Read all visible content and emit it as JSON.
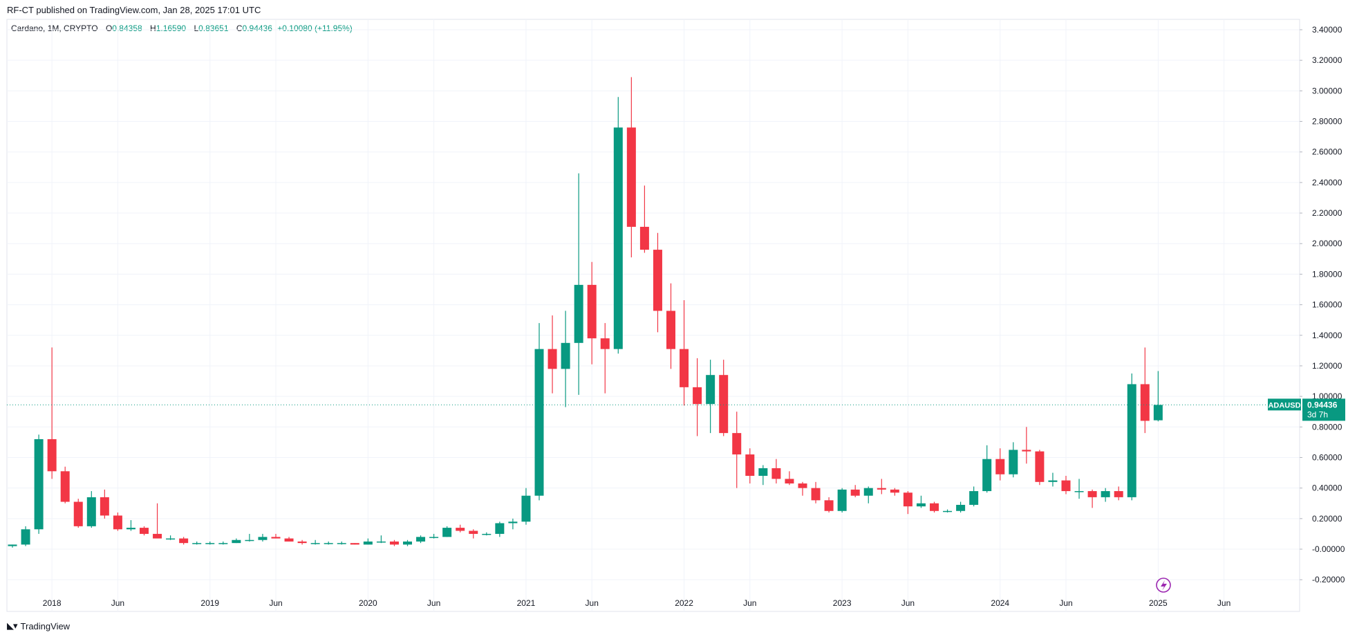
{
  "header": {
    "published": "RF-CT published on TradingView.com, Jan 28, 2025 17:01 UTC"
  },
  "legend": {
    "symbol": "Cardano, 1M, CRYPTO",
    "open_label": "O",
    "open": "0.84358",
    "high_label": "H",
    "high": "1.16590",
    "low_label": "L",
    "low": "0.83651",
    "close_label": "C",
    "close": "0.94436",
    "change": "+0.10080 (+11.95%)"
  },
  "price_tag": {
    "symbol": "ADAUSD",
    "price": "0.94436",
    "countdown": "3d 7h",
    "color": "#089981"
  },
  "footer": {
    "brand": "TradingView"
  },
  "colors": {
    "up": "#089981",
    "down": "#F23645",
    "grid": "#f0f3fa",
    "axis_text": "#131722",
    "last_price_line": "#089981"
  },
  "chart_data": {
    "type": "candlestick",
    "timeframe": "1M",
    "ylim": [
      -0.3,
      3.45
    ],
    "y_ticks": [
      "3.40000",
      "3.20000",
      "3.00000",
      "2.80000",
      "2.60000",
      "2.40000",
      "2.20000",
      "2.00000",
      "1.80000",
      "1.60000",
      "1.40000",
      "1.20000",
      "1.00000",
      "0.80000",
      "0.60000",
      "0.40000",
      "0.20000",
      "-0.00000",
      "-0.20000"
    ],
    "x_ticks": [
      {
        "label": "2018",
        "month_index": 3
      },
      {
        "label": "Jun",
        "month_index": 8
      },
      {
        "label": "2019",
        "month_index": 15
      },
      {
        "label": "Jun",
        "month_index": 20
      },
      {
        "label": "2020",
        "month_index": 27
      },
      {
        "label": "Jun",
        "month_index": 32
      },
      {
        "label": "2021",
        "month_index": 39
      },
      {
        "label": "Jun",
        "month_index": 44
      },
      {
        "label": "2022",
        "month_index": 51
      },
      {
        "label": "Jun",
        "month_index": 56
      },
      {
        "label": "2023",
        "month_index": 63
      },
      {
        "label": "Jun",
        "month_index": 68
      },
      {
        "label": "2024",
        "month_index": 75
      },
      {
        "label": "Jun",
        "month_index": 80
      },
      {
        "label": "2025",
        "month_index": 87
      },
      {
        "label": "Jun",
        "month_index": 92
      }
    ],
    "last_price": 0.94436,
    "candles": [
      {
        "m": "2017-10",
        "o": 0.02,
        "h": 0.03,
        "l": 0.01,
        "c": 0.03
      },
      {
        "m": "2017-11",
        "o": 0.03,
        "h": 0.15,
        "l": 0.02,
        "c": 0.13
      },
      {
        "m": "2017-12",
        "o": 0.13,
        "h": 0.75,
        "l": 0.1,
        "c": 0.72
      },
      {
        "m": "2018-01",
        "o": 0.72,
        "h": 1.32,
        "l": 0.46,
        "c": 0.51
      },
      {
        "m": "2018-02",
        "o": 0.51,
        "h": 0.54,
        "l": 0.3,
        "c": 0.31
      },
      {
        "m": "2018-03",
        "o": 0.31,
        "h": 0.33,
        "l": 0.14,
        "c": 0.15
      },
      {
        "m": "2018-04",
        "o": 0.15,
        "h": 0.38,
        "l": 0.14,
        "c": 0.34
      },
      {
        "m": "2018-05",
        "o": 0.34,
        "h": 0.39,
        "l": 0.2,
        "c": 0.22
      },
      {
        "m": "2018-06",
        "o": 0.22,
        "h": 0.24,
        "l": 0.12,
        "c": 0.13
      },
      {
        "m": "2018-07",
        "o": 0.13,
        "h": 0.19,
        "l": 0.12,
        "c": 0.14
      },
      {
        "m": "2018-08",
        "o": 0.14,
        "h": 0.15,
        "l": 0.09,
        "c": 0.1
      },
      {
        "m": "2018-09",
        "o": 0.1,
        "h": 0.3,
        "l": 0.07,
        "c": 0.07
      },
      {
        "m": "2018-10",
        "o": 0.07,
        "h": 0.09,
        "l": 0.06,
        "c": 0.07
      },
      {
        "m": "2018-11",
        "o": 0.07,
        "h": 0.08,
        "l": 0.03,
        "c": 0.04
      },
      {
        "m": "2018-12",
        "o": 0.04,
        "h": 0.05,
        "l": 0.03,
        "c": 0.04
      },
      {
        "m": "2019-01",
        "o": 0.04,
        "h": 0.05,
        "l": 0.03,
        "c": 0.04
      },
      {
        "m": "2019-02",
        "o": 0.04,
        "h": 0.05,
        "l": 0.03,
        "c": 0.04
      },
      {
        "m": "2019-03",
        "o": 0.04,
        "h": 0.07,
        "l": 0.04,
        "c": 0.06
      },
      {
        "m": "2019-04",
        "o": 0.06,
        "h": 0.1,
        "l": 0.05,
        "c": 0.06
      },
      {
        "m": "2019-05",
        "o": 0.06,
        "h": 0.1,
        "l": 0.05,
        "c": 0.08
      },
      {
        "m": "2019-06",
        "o": 0.08,
        "h": 0.1,
        "l": 0.07,
        "c": 0.07
      },
      {
        "m": "2019-07",
        "o": 0.07,
        "h": 0.08,
        "l": 0.05,
        "c": 0.05
      },
      {
        "m": "2019-08",
        "o": 0.05,
        "h": 0.06,
        "l": 0.03,
        "c": 0.04
      },
      {
        "m": "2019-09",
        "o": 0.04,
        "h": 0.06,
        "l": 0.03,
        "c": 0.04
      },
      {
        "m": "2019-10",
        "o": 0.04,
        "h": 0.05,
        "l": 0.03,
        "c": 0.04
      },
      {
        "m": "2019-11",
        "o": 0.04,
        "h": 0.05,
        "l": 0.03,
        "c": 0.04
      },
      {
        "m": "2019-12",
        "o": 0.04,
        "h": 0.04,
        "l": 0.03,
        "c": 0.03
      },
      {
        "m": "2020-01",
        "o": 0.03,
        "h": 0.07,
        "l": 0.03,
        "c": 0.05
      },
      {
        "m": "2020-02",
        "o": 0.05,
        "h": 0.09,
        "l": 0.04,
        "c": 0.05
      },
      {
        "m": "2020-03",
        "o": 0.05,
        "h": 0.06,
        "l": 0.02,
        "c": 0.03
      },
      {
        "m": "2020-04",
        "o": 0.03,
        "h": 0.06,
        "l": 0.02,
        "c": 0.05
      },
      {
        "m": "2020-05",
        "o": 0.05,
        "h": 0.09,
        "l": 0.04,
        "c": 0.08
      },
      {
        "m": "2020-06",
        "o": 0.08,
        "h": 0.1,
        "l": 0.07,
        "c": 0.08
      },
      {
        "m": "2020-07",
        "o": 0.08,
        "h": 0.15,
        "l": 0.08,
        "c": 0.14
      },
      {
        "m": "2020-08",
        "o": 0.14,
        "h": 0.16,
        "l": 0.11,
        "c": 0.12
      },
      {
        "m": "2020-09",
        "o": 0.12,
        "h": 0.13,
        "l": 0.07,
        "c": 0.1
      },
      {
        "m": "2020-10",
        "o": 0.1,
        "h": 0.11,
        "l": 0.09,
        "c": 0.1
      },
      {
        "m": "2020-11",
        "o": 0.1,
        "h": 0.18,
        "l": 0.08,
        "c": 0.17
      },
      {
        "m": "2020-12",
        "o": 0.17,
        "h": 0.2,
        "l": 0.13,
        "c": 0.18
      },
      {
        "m": "2021-01",
        "o": 0.18,
        "h": 0.4,
        "l": 0.16,
        "c": 0.35
      },
      {
        "m": "2021-02",
        "o": 0.35,
        "h": 1.48,
        "l": 0.32,
        "c": 1.31
      },
      {
        "m": "2021-03",
        "o": 1.31,
        "h": 1.53,
        "l": 1.02,
        "c": 1.18
      },
      {
        "m": "2021-04",
        "o": 1.18,
        "h": 1.56,
        "l": 0.93,
        "c": 1.35
      },
      {
        "m": "2021-05",
        "o": 1.35,
        "h": 2.46,
        "l": 1.01,
        "c": 1.73
      },
      {
        "m": "2021-06",
        "o": 1.73,
        "h": 1.88,
        "l": 1.21,
        "c": 1.38
      },
      {
        "m": "2021-07",
        "o": 1.38,
        "h": 1.48,
        "l": 1.02,
        "c": 1.31
      },
      {
        "m": "2021-08",
        "o": 1.31,
        "h": 2.96,
        "l": 1.28,
        "c": 2.76
      },
      {
        "m": "2021-09",
        "o": 2.76,
        "h": 3.09,
        "l": 1.91,
        "c": 2.11
      },
      {
        "m": "2021-10",
        "o": 2.11,
        "h": 2.38,
        "l": 1.94,
        "c": 1.96
      },
      {
        "m": "2021-11",
        "o": 1.96,
        "h": 2.07,
        "l": 1.42,
        "c": 1.56
      },
      {
        "m": "2021-12",
        "o": 1.56,
        "h": 1.74,
        "l": 1.18,
        "c": 1.31
      },
      {
        "m": "2022-01",
        "o": 1.31,
        "h": 1.63,
        "l": 0.94,
        "c": 1.06
      },
      {
        "m": "2022-02",
        "o": 1.06,
        "h": 1.25,
        "l": 0.74,
        "c": 0.95
      },
      {
        "m": "2022-03",
        "o": 0.95,
        "h": 1.24,
        "l": 0.76,
        "c": 1.14
      },
      {
        "m": "2022-04",
        "o": 1.14,
        "h": 1.24,
        "l": 0.74,
        "c": 0.76
      },
      {
        "m": "2022-05",
        "o": 0.76,
        "h": 0.9,
        "l": 0.4,
        "c": 0.62
      },
      {
        "m": "2022-06",
        "o": 0.62,
        "h": 0.66,
        "l": 0.43,
        "c": 0.48
      },
      {
        "m": "2022-07",
        "o": 0.48,
        "h": 0.55,
        "l": 0.42,
        "c": 0.53
      },
      {
        "m": "2022-08",
        "o": 0.53,
        "h": 0.59,
        "l": 0.43,
        "c": 0.46
      },
      {
        "m": "2022-09",
        "o": 0.46,
        "h": 0.51,
        "l": 0.42,
        "c": 0.43
      },
      {
        "m": "2022-10",
        "o": 0.43,
        "h": 0.44,
        "l": 0.35,
        "c": 0.4
      },
      {
        "m": "2022-11",
        "o": 0.4,
        "h": 0.44,
        "l": 0.3,
        "c": 0.32
      },
      {
        "m": "2022-12",
        "o": 0.32,
        "h": 0.34,
        "l": 0.24,
        "c": 0.25
      },
      {
        "m": "2023-01",
        "o": 0.25,
        "h": 0.4,
        "l": 0.24,
        "c": 0.39
      },
      {
        "m": "2023-02",
        "o": 0.39,
        "h": 0.42,
        "l": 0.34,
        "c": 0.35
      },
      {
        "m": "2023-03",
        "o": 0.35,
        "h": 0.41,
        "l": 0.3,
        "c": 0.4
      },
      {
        "m": "2023-04",
        "o": 0.4,
        "h": 0.46,
        "l": 0.36,
        "c": 0.39
      },
      {
        "m": "2023-05",
        "o": 0.39,
        "h": 0.4,
        "l": 0.35,
        "c": 0.37
      },
      {
        "m": "2023-06",
        "o": 0.37,
        "h": 0.38,
        "l": 0.23,
        "c": 0.28
      },
      {
        "m": "2023-07",
        "o": 0.28,
        "h": 0.35,
        "l": 0.27,
        "c": 0.3
      },
      {
        "m": "2023-08",
        "o": 0.3,
        "h": 0.31,
        "l": 0.24,
        "c": 0.25
      },
      {
        "m": "2023-09",
        "o": 0.25,
        "h": 0.26,
        "l": 0.24,
        "c": 0.25
      },
      {
        "m": "2023-10",
        "o": 0.25,
        "h": 0.31,
        "l": 0.24,
        "c": 0.29
      },
      {
        "m": "2023-11",
        "o": 0.29,
        "h": 0.41,
        "l": 0.28,
        "c": 0.38
      },
      {
        "m": "2023-12",
        "o": 0.38,
        "h": 0.68,
        "l": 0.37,
        "c": 0.59
      },
      {
        "m": "2024-01",
        "o": 0.59,
        "h": 0.66,
        "l": 0.45,
        "c": 0.49
      },
      {
        "m": "2024-02",
        "o": 0.49,
        "h": 0.7,
        "l": 0.47,
        "c": 0.65
      },
      {
        "m": "2024-03",
        "o": 0.65,
        "h": 0.8,
        "l": 0.56,
        "c": 0.64
      },
      {
        "m": "2024-04",
        "o": 0.64,
        "h": 0.65,
        "l": 0.42,
        "c": 0.44
      },
      {
        "m": "2024-05",
        "o": 0.44,
        "h": 0.5,
        "l": 0.41,
        "c": 0.45
      },
      {
        "m": "2024-06",
        "o": 0.45,
        "h": 0.48,
        "l": 0.36,
        "c": 0.38
      },
      {
        "m": "2024-07",
        "o": 0.38,
        "h": 0.46,
        "l": 0.33,
        "c": 0.38
      },
      {
        "m": "2024-08",
        "o": 0.38,
        "h": 0.39,
        "l": 0.27,
        "c": 0.34
      },
      {
        "m": "2024-09",
        "o": 0.34,
        "h": 0.4,
        "l": 0.31,
        "c": 0.38
      },
      {
        "m": "2024-10",
        "o": 0.38,
        "h": 0.41,
        "l": 0.32,
        "c": 0.34
      },
      {
        "m": "2024-11",
        "o": 0.34,
        "h": 1.15,
        "l": 0.32,
        "c": 1.08
      },
      {
        "m": "2024-12",
        "o": 1.08,
        "h": 1.32,
        "l": 0.76,
        "c": 0.84
      },
      {
        "m": "2025-01",
        "o": 0.84358,
        "h": 1.1659,
        "l": 0.83651,
        "c": 0.94436
      }
    ]
  }
}
